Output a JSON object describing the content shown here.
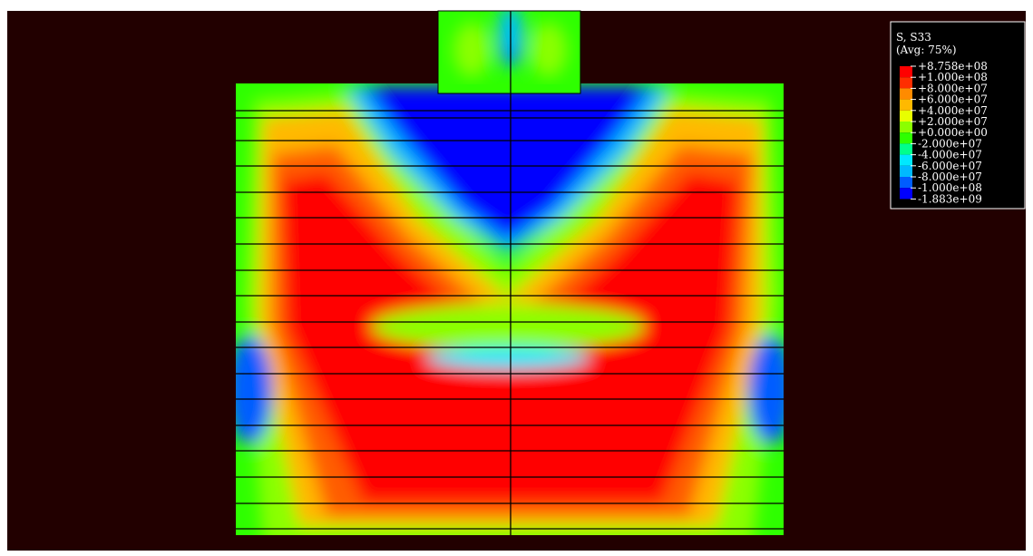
{
  "legend": {
    "title": "S, S33",
    "subtitle": "(Avg: 75%)",
    "labels": [
      "+8.758e+08",
      "+1.000e+08",
      "+8.000e+07",
      "+6.000e+07",
      "+4.000e+07",
      "+2.000e+07",
      "+0.000e+00",
      "-2.000e+07",
      "-4.000e+07",
      "-6.000e+07",
      "-8.000e+07",
      "-1.000e+08",
      "-1.883e+09"
    ]
  }
}
